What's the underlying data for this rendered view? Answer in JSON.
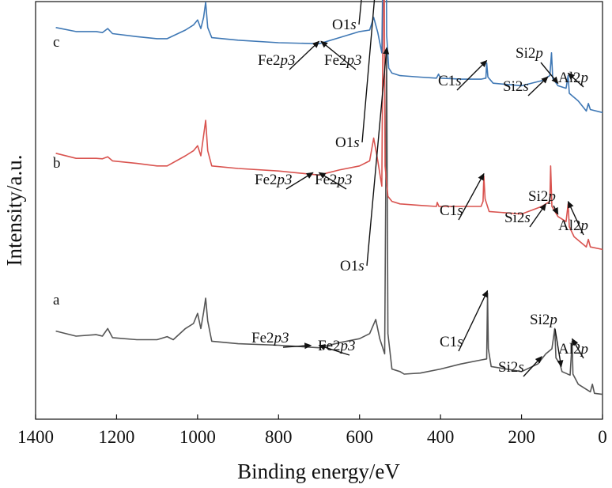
{
  "chart_data": {
    "type": "line",
    "xlabel": "Binding energy/eV",
    "ylabel": "Intensity/a.u.",
    "xlim": [
      1400,
      0
    ],
    "x_reversed": true,
    "xticks": [
      1400,
      1200,
      1000,
      800,
      600,
      400,
      200,
      0
    ],
    "y_ticks_shown": false,
    "grid": false,
    "legend": "none",
    "series": [
      {
        "name": "a",
        "color": "#555555",
        "baseline": 0.0,
        "points": [
          [
            1350,
            0.135
          ],
          [
            1300,
            0.125
          ],
          [
            1250,
            0.128
          ],
          [
            1235,
            0.125
          ],
          [
            1222,
            0.14
          ],
          [
            1210,
            0.122
          ],
          [
            1150,
            0.118
          ],
          [
            1100,
            0.118
          ],
          [
            1075,
            0.124
          ],
          [
            1060,
            0.118
          ],
          [
            1030,
            0.14
          ],
          [
            1010,
            0.15
          ],
          [
            1000,
            0.17
          ],
          [
            992,
            0.14
          ],
          [
            985,
            0.172
          ],
          [
            980,
            0.2
          ],
          [
            975,
            0.155
          ],
          [
            965,
            0.115
          ],
          [
            900,
            0.11
          ],
          [
            800,
            0.107
          ],
          [
            700,
            0.102
          ],
          [
            650,
            0.112
          ],
          [
            600,
            0.12
          ],
          [
            575,
            0.13
          ],
          [
            560,
            0.158
          ],
          [
            550,
            0.12
          ],
          [
            538,
            0.09
          ],
          [
            533,
            0.69
          ],
          [
            530,
            0.13
          ],
          [
            520,
            0.06
          ],
          [
            500,
            0.055
          ],
          [
            490,
            0.05
          ],
          [
            450,
            0.052
          ],
          [
            400,
            0.06
          ],
          [
            350,
            0.07
          ],
          [
            300,
            0.078
          ],
          [
            286,
            0.08
          ],
          [
            284,
            0.21
          ],
          [
            282,
            0.1
          ],
          [
            275,
            0.065
          ],
          [
            200,
            0.055
          ],
          [
            160,
            0.07
          ],
          [
            140,
            0.09
          ],
          [
            125,
            0.1
          ],
          [
            118,
            0.14
          ],
          [
            115,
            0.082
          ],
          [
            105,
            0.07
          ],
          [
            100,
            0.055
          ],
          [
            80,
            0.048
          ],
          [
            75,
            0.115
          ],
          [
            73,
            0.05
          ],
          [
            60,
            0.03
          ],
          [
            30,
            0.015
          ],
          [
            25,
            0.03
          ],
          [
            20,
            0.012
          ],
          [
            0,
            0.01
          ]
        ]
      },
      {
        "name": "b",
        "color": "#d9534f",
        "baseline": 0.0,
        "points": [
          [
            1350,
            0.205
          ],
          [
            1300,
            0.195
          ],
          [
            1250,
            0.195
          ],
          [
            1235,
            0.194
          ],
          [
            1222,
            0.198
          ],
          [
            1210,
            0.19
          ],
          [
            1150,
            0.185
          ],
          [
            1100,
            0.18
          ],
          [
            1075,
            0.18
          ],
          [
            1030,
            0.2
          ],
          [
            1010,
            0.21
          ],
          [
            1000,
            0.22
          ],
          [
            992,
            0.2
          ],
          [
            985,
            0.24
          ],
          [
            980,
            0.27
          ],
          [
            975,
            0.21
          ],
          [
            965,
            0.18
          ],
          [
            900,
            0.175
          ],
          [
            800,
            0.17
          ],
          [
            700,
            0.162
          ],
          [
            650,
            0.172
          ],
          [
            600,
            0.18
          ],
          [
            575,
            0.19
          ],
          [
            565,
            0.235
          ],
          [
            555,
            0.19
          ],
          [
            545,
            0.14
          ],
          [
            540,
            0.72
          ],
          [
            537,
            0.18
          ],
          [
            530,
            0.12
          ],
          [
            520,
            0.11
          ],
          [
            500,
            0.105
          ],
          [
            450,
            0.102
          ],
          [
            410,
            0.1
          ],
          [
            408,
            0.108
          ],
          [
            404,
            0.1
          ],
          [
            350,
            0.1
          ],
          [
            300,
            0.1
          ],
          [
            295,
            0.11
          ],
          [
            293,
            0.16
          ],
          [
            290,
            0.115
          ],
          [
            280,
            0.09
          ],
          [
            200,
            0.085
          ],
          [
            150,
            0.1
          ],
          [
            130,
            0.11
          ],
          [
            128,
            0.18
          ],
          [
            125,
            0.1
          ],
          [
            110,
            0.08
          ],
          [
            90,
            0.07
          ],
          [
            85,
            0.105
          ],
          [
            82,
            0.06
          ],
          [
            70,
            0.04
          ],
          [
            40,
            0.02
          ],
          [
            35,
            0.035
          ],
          [
            30,
            0.02
          ],
          [
            0,
            0.015
          ]
        ]
      },
      {
        "name": "c",
        "color": "#3f78b5",
        "baseline": 0.0,
        "points": [
          [
            1350,
            0.18
          ],
          [
            1300,
            0.172
          ],
          [
            1250,
            0.172
          ],
          [
            1235,
            0.17
          ],
          [
            1222,
            0.178
          ],
          [
            1210,
            0.168
          ],
          [
            1150,
            0.162
          ],
          [
            1100,
            0.158
          ],
          [
            1075,
            0.158
          ],
          [
            1030,
            0.175
          ],
          [
            1010,
            0.185
          ],
          [
            1000,
            0.195
          ],
          [
            992,
            0.178
          ],
          [
            985,
            0.2
          ],
          [
            980,
            0.23
          ],
          [
            975,
            0.18
          ],
          [
            965,
            0.16
          ],
          [
            900,
            0.155
          ],
          [
            800,
            0.15
          ],
          [
            700,
            0.148
          ],
          [
            650,
            0.16
          ],
          [
            600,
            0.172
          ],
          [
            575,
            0.175
          ],
          [
            565,
            0.2
          ],
          [
            555,
            0.17
          ],
          [
            545,
            0.13
          ],
          [
            536,
            0.72
          ],
          [
            533,
            0.165
          ],
          [
            528,
            0.1
          ],
          [
            520,
            0.09
          ],
          [
            500,
            0.085
          ],
          [
            450,
            0.082
          ],
          [
            410,
            0.08
          ],
          [
            405,
            0.088
          ],
          [
            400,
            0.08
          ],
          [
            350,
            0.078
          ],
          [
            300,
            0.078
          ],
          [
            288,
            0.08
          ],
          [
            286,
            0.11
          ],
          [
            283,
            0.082
          ],
          [
            270,
            0.07
          ],
          [
            200,
            0.065
          ],
          [
            150,
            0.075
          ],
          [
            130,
            0.085
          ],
          [
            126,
            0.13
          ],
          [
            123,
            0.08
          ],
          [
            110,
            0.065
          ],
          [
            90,
            0.06
          ],
          [
            85,
            0.085
          ],
          [
            82,
            0.05
          ],
          [
            60,
            0.035
          ],
          [
            40,
            0.015
          ],
          [
            35,
            0.03
          ],
          [
            30,
            0.018
          ],
          [
            0,
            0.012
          ]
        ]
      }
    ],
    "annotations": [
      {
        "series": "a",
        "text_prefix": "O1",
        "text_italic": "s",
        "x": 533,
        "y": 0.69
      },
      {
        "series": "a",
        "text_prefix": "C1",
        "text_italic": "s",
        "x": 284,
        "y": 0.21
      },
      {
        "series": "a",
        "text_prefix": "Si2",
        "text_italic": "s",
        "x": 150,
        "y": 0.08
      },
      {
        "series": "a",
        "text_prefix": "Si2",
        "text_italic": "p",
        "x": 102,
        "y": 0.06
      },
      {
        "series": "a",
        "text_prefix": "Al2",
        "text_italic": "p",
        "x": 75,
        "y": 0.115
      },
      {
        "series": "a",
        "text_prefix": "Fe2",
        "text_italic": "p3",
        "x": 720,
        "y": 0.102
      },
      {
        "series": "a",
        "text_prefix": "Fe2",
        "text_italic": "p3",
        "x": 700,
        "y": 0.102
      },
      {
        "series": "b",
        "text_prefix": "O1",
        "text_italic": "s",
        "x": 540,
        "y": 0.72
      },
      {
        "series": "b",
        "text_prefix": "C1",
        "text_italic": "s",
        "x": 293,
        "y": 0.16
      },
      {
        "series": "b",
        "text_prefix": "Si2",
        "text_italic": "s",
        "x": 140,
        "y": 0.1
      },
      {
        "series": "b",
        "text_prefix": "Si2",
        "text_italic": "p",
        "x": 110,
        "y": 0.08
      },
      {
        "series": "b",
        "text_prefix": "Al2",
        "text_italic": "p",
        "x": 85,
        "y": 0.105
      },
      {
        "series": "b",
        "text_prefix": "Fe2",
        "text_italic": "p3",
        "x": 715,
        "y": 0.162
      },
      {
        "series": "b",
        "text_prefix": "Fe2",
        "text_italic": "p3",
        "x": 700,
        "y": 0.162
      },
      {
        "series": "c",
        "text_prefix": "O1",
        "text_italic": "s",
        "x": 536,
        "y": 0.72
      },
      {
        "series": "c",
        "text_prefix": "C1",
        "text_italic": "s",
        "x": 286,
        "y": 0.11
      },
      {
        "series": "c",
        "text_prefix": "Si2",
        "text_italic": "s",
        "x": 135,
        "y": 0.078
      },
      {
        "series": "c",
        "text_prefix": "Si2",
        "text_italic": "p",
        "x": 110,
        "y": 0.065
      },
      {
        "series": "c",
        "text_prefix": "Al2",
        "text_italic": "p",
        "x": 85,
        "y": 0.085
      },
      {
        "series": "c",
        "text_prefix": "Fe2",
        "text_italic": "p3",
        "x": 700,
        "y": 0.148
      },
      {
        "series": "c",
        "text_prefix": "Fe2",
        "text_italic": "p3",
        "x": 695,
        "y": 0.148
      }
    ]
  }
}
